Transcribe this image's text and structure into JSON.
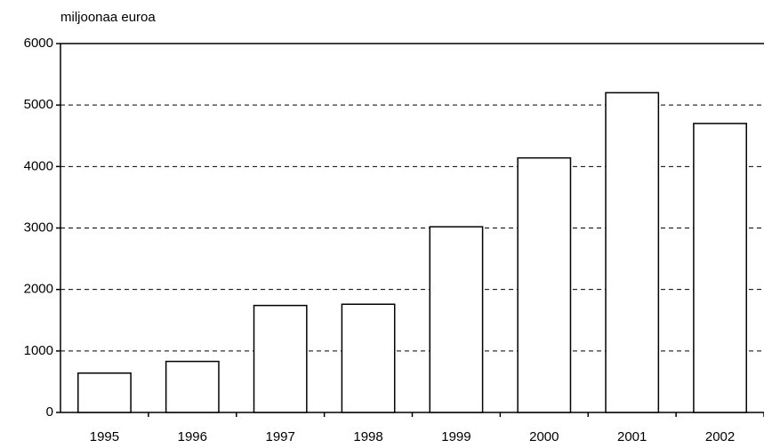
{
  "chart_data": {
    "type": "bar",
    "axis_label": "miljoonaa euroa",
    "categories": [
      "1995",
      "1996",
      "1997",
      "1998",
      "1999",
      "2000",
      "2001",
      "2002"
    ],
    "values": [
      640,
      830,
      1740,
      1760,
      3020,
      4140,
      5200,
      4700
    ],
    "color": "#ffffff",
    "ylim": [
      0,
      6000
    ],
    "yticks": [
      0,
      1000,
      2000,
      3000,
      4000,
      5000,
      6000
    ],
    "grid": true
  }
}
